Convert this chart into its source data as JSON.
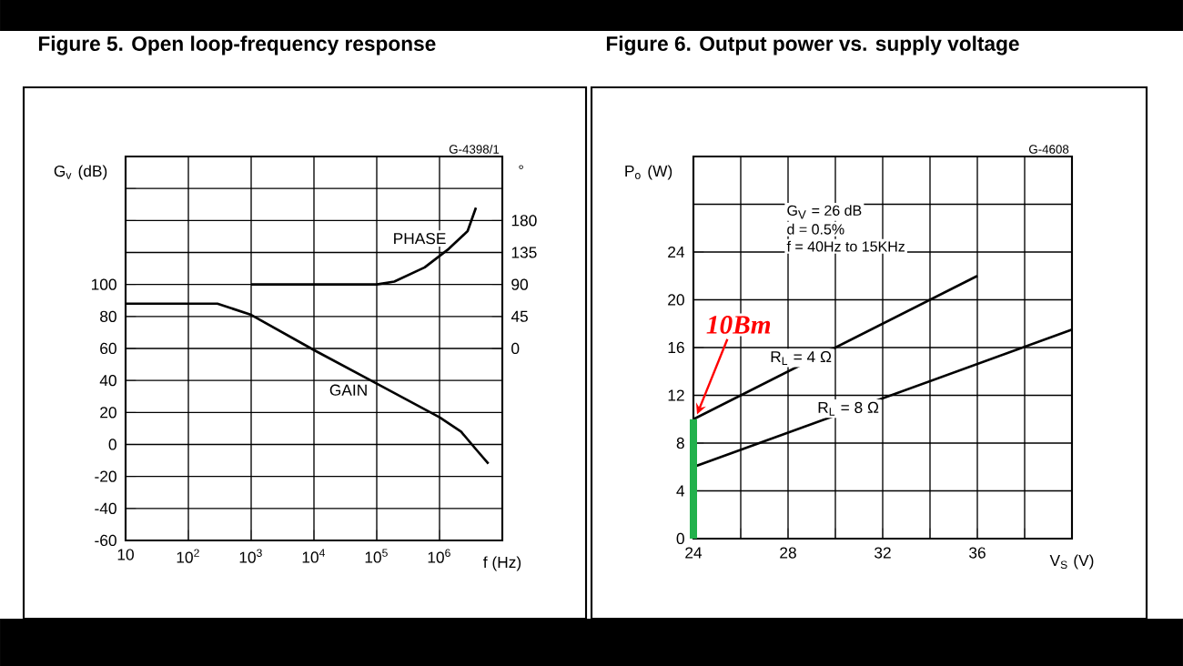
{
  "chart_data": [
    {
      "type": "line",
      "title": "Figure 5. Open loop-frequency response",
      "xlabel": "f (Hz)",
      "ylabel": "G$_{v}$ (dB)",
      "y2label": "°",
      "log": "x",
      "grid": true,
      "marker": "none",
      "line_style": "solid",
      "xlim": [
        10,
        10000000
      ],
      "xticks": [
        10,
        {
          "value": 100,
          "label": "10$^{2}$"
        },
        {
          "value": 1000,
          "label": "10$^{3}$"
        },
        {
          "value": 10000,
          "label": "10$^{4}$"
        },
        {
          "value": 100000,
          "label": "10$^{5}$"
        },
        {
          "value": 1000000,
          "label": "10$^{6}$"
        }
      ],
      "ylim": [
        -60,
        180
      ],
      "yticks": [
        -60,
        -40,
        -20,
        0,
        20,
        40,
        60,
        80,
        100,
        {
          "value": 120,
          "label": null
        },
        {
          "value": 140,
          "label": null
        },
        {
          "value": 160,
          "label": null
        }
      ],
      "y2lim": [
        -270,
        270
      ],
      "y2ticks": [
        0,
        45,
        90,
        135,
        180
      ],
      "annotations": [
        "G-4398/1"
      ],
      "series": [
        {
          "name": "GAIN",
          "color": "#000000",
          "x": [
            10,
            290,
            1000,
            10000,
            100000,
            1000000,
            2200000,
            3800000,
            6000000
          ],
          "values": [
            88,
            88,
            81,
            59,
            38,
            17,
            8,
            -3,
            -12
          ]
        },
        {
          "name": "PHASE",
          "color": "#000000",
          "axis": "y2",
          "x": [
            1000,
            100000,
            190000,
            580000,
            1400000,
            2800000,
            3800000
          ],
          "values": [
            90,
            90,
            94,
            114,
            140,
            165,
            198
          ]
        }
      ]
    },
    {
      "type": "line",
      "title": "Figure 6. Output power vs. supply voltage",
      "xlabel": "V$_{S}$ (V)",
      "ylabel": "P$_{o}$ (W)",
      "grid": true,
      "marker": "none",
      "line_style": "solid",
      "xlim": [
        24,
        40
      ],
      "xticks": [
        24,
        {
          "value": 26,
          "label": null
        },
        28,
        {
          "value": 30,
          "label": null
        },
        32,
        {
          "value": 34,
          "label": null
        },
        36,
        {
          "value": 38,
          "label": null
        }
      ],
      "ylim": [
        0,
        32
      ],
      "yticks": [
        0,
        4,
        8,
        12,
        16,
        20,
        24,
        {
          "value": 28,
          "label": null
        }
      ],
      "annotations": [
        "G-4608",
        "G$_{V}$ = 26 dB",
        "d = 0.5%",
        "f = 40Hz to 15KHz",
        {
          "text": "10Bm",
          "x": 24,
          "y": 10
        }
      ],
      "series": [
        {
          "name": "R$_{L}$ = 4 Ω",
          "color": "#000000",
          "x": [
            24,
            36
          ],
          "values": [
            10,
            22
          ]
        },
        {
          "name": "R$_{L}$ = 8 Ω",
          "color": "#000000",
          "x": [
            24,
            40
          ],
          "values": [
            6,
            17.5
          ]
        },
        {
          "color": "#22b14c",
          "x": [
            24,
            24
          ],
          "values": [
            0,
            10
          ]
        }
      ]
    }
  ]
}
